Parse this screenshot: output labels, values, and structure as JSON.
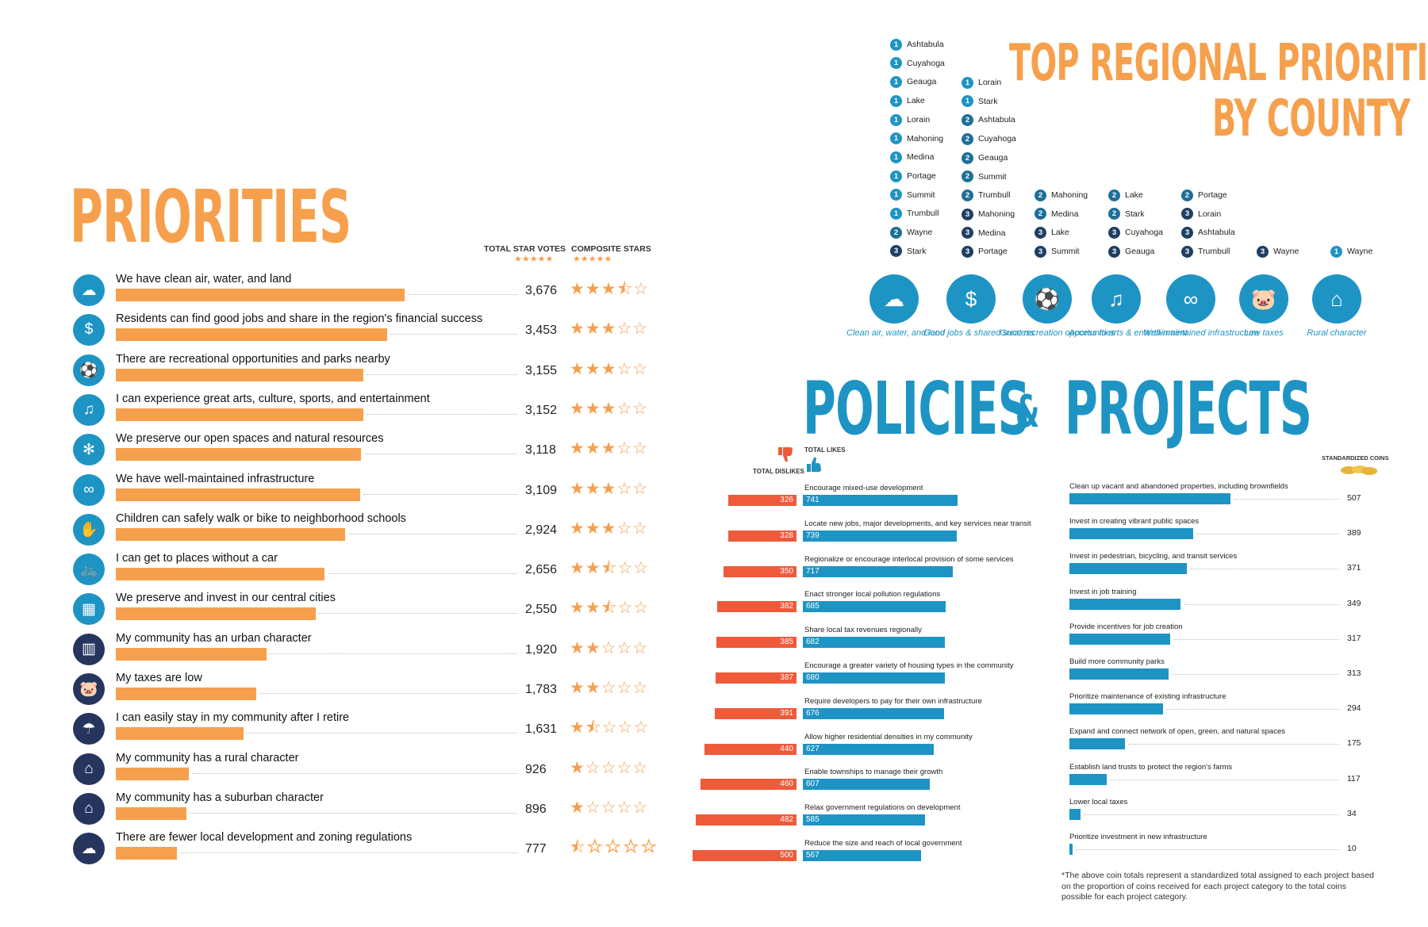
{
  "priorities": {
    "title": "PRIORITIES",
    "col_votes": "TOTAL STAR VOTES",
    "col_stars": "COMPOSITE STARS",
    "header_stars": "★★★★★"
  },
  "county": {
    "title_line1": "TOP REGIONAL PRIORITIES",
    "title_line2": "BY COUNTY",
    "columns": [
      [
        {
          "rank": "1",
          "name": "Ashtabula"
        },
        {
          "rank": "1",
          "name": "Cuyahoga"
        },
        {
          "rank": "1",
          "name": "Geauga"
        },
        {
          "rank": "1",
          "name": "Lake"
        },
        {
          "rank": "1",
          "name": "Lorain"
        },
        {
          "rank": "1",
          "name": "Mahoning"
        },
        {
          "rank": "1",
          "name": "Medina"
        },
        {
          "rank": "1",
          "name": "Portage"
        },
        {
          "rank": "1",
          "name": "Summit"
        },
        {
          "rank": "1",
          "name": "Trumbull"
        },
        {
          "rank": "2",
          "name": "Wayne"
        },
        {
          "rank": "3",
          "name": "Stark"
        }
      ],
      [
        {
          "rank": "1",
          "name": "Lorain"
        },
        {
          "rank": "1",
          "name": "Stark"
        },
        {
          "rank": "2",
          "name": "Ashtabula"
        },
        {
          "rank": "2",
          "name": "Cuyahoga"
        },
        {
          "rank": "2",
          "name": "Geauga"
        },
        {
          "rank": "2",
          "name": "Summit"
        },
        {
          "rank": "2",
          "name": "Trumbull"
        },
        {
          "rank": "3",
          "name": "Mahoning"
        },
        {
          "rank": "3",
          "name": "Medina"
        },
        {
          "rank": "3",
          "name": "Portage"
        }
      ],
      [
        {
          "rank": "2",
          "name": "Mahoning"
        },
        {
          "rank": "2",
          "name": "Medina"
        },
        {
          "rank": "3",
          "name": "Lake"
        },
        {
          "rank": "3",
          "name": "Summit"
        }
      ],
      [
        {
          "rank": "2",
          "name": "Lake"
        },
        {
          "rank": "2",
          "name": "Stark"
        },
        {
          "rank": "3",
          "name": "Cuyahoga"
        },
        {
          "rank": "3",
          "name": "Geauga"
        }
      ],
      [
        {
          "rank": "2",
          "name": "Portage"
        },
        {
          "rank": "3",
          "name": "Lorain"
        },
        {
          "rank": "3",
          "name": "Ashtabula"
        },
        {
          "rank": "3",
          "name": "Trumbull"
        }
      ],
      [
        {
          "rank": "3",
          "name": "Wayne"
        }
      ],
      [
        {
          "rank": "1",
          "name": "Wayne"
        }
      ]
    ],
    "badges": [
      {
        "label": "Clean air, water, and land",
        "icon": "☁"
      },
      {
        "label": "Good jobs & shared success",
        "icon": "$"
      },
      {
        "label": "Great recreation opportunities",
        "icon": "⚽"
      },
      {
        "label": "Access to arts & entertainment",
        "icon": "♫"
      },
      {
        "label": "Well-maintained infrastructure",
        "icon": "∞"
      },
      {
        "label": "Low taxes",
        "icon": "🐷"
      },
      {
        "label": "Rural character",
        "icon": "⌂"
      }
    ]
  },
  "policies": {
    "title_left": "POLICIES",
    "amp": "&",
    "title_right": "PROJECTS",
    "dislikes_label": "TOTAL DISLIKES",
    "likes_label": "TOTAL LIKES",
    "coins_label": "STANDARDIZED COINS",
    "footnote": "*The above coin totals represent a standardized total assigned to each project based on the proportion of coins received for each project category to the total coins possible for each project category."
  },
  "chart_data": [
    {
      "type": "bar",
      "title": "PRIORITIES",
      "series": [
        {
          "name": "TOTAL STAR VOTES",
          "values": [
            3676,
            3453,
            3155,
            3152,
            3118,
            3109,
            2924,
            2656,
            2550,
            1920,
            1783,
            1631,
            926,
            896,
            777
          ]
        },
        {
          "name": "COMPOSITE STARS",
          "values": [
            3.5,
            3,
            3,
            3,
            3,
            3,
            3,
            2.5,
            2.5,
            2,
            2,
            1.5,
            1,
            1,
            0.5
          ]
        }
      ],
      "categories": [
        "We have clean air, water, and land",
        "Residents can find good jobs and share in the region's financial success",
        "There are recreational opportunities and parks nearby",
        "I can experience great arts, culture, sports, and entertainment",
        "We preserve our open spaces and natural resources",
        "We have well-maintained infrastructure",
        "Children can safely walk or bike to neighborhood schools",
        "I can get to places without a car",
        "We preserve and invest in our central cities",
        "My community has an urban character",
        "My taxes are low",
        "I can easily stay in my community after I retire",
        "My community has a rural character",
        "My community has a suburban character",
        "There are fewer local development and zoning regulations"
      ],
      "display_values": [
        "3,676",
        "3,453",
        "3,155",
        "3,152",
        "3,118",
        "3,109",
        "2,924",
        "2,656",
        "2,550",
        "1,920",
        "1,783",
        "1,631",
        "926",
        "896",
        "777"
      ],
      "icons": [
        "☁",
        "$",
        "⚽",
        "♫",
        "✻",
        "∞",
        "✋",
        "🚲",
        "▦",
        "▥",
        "🐷",
        "☂",
        "⌂",
        "⌂",
        "☁"
      ],
      "dark_icons": [
        9,
        10,
        11,
        12,
        13,
        14
      ],
      "xlim": [
        0,
        4000
      ]
    },
    {
      "type": "bar",
      "title": "POLICIES",
      "categories": [
        "Encourage mixed-use development",
        "Locate new jobs, major developments, and key services near transit",
        "Regionalize or encourage interlocal provision of some services",
        "Enact stronger local pollution regulations",
        "Share local tax revenues regionally",
        "Encourage a greater variety of housing types in the community",
        "Require developers to pay for their own infrastructure",
        "Allow higher residential densities in my community",
        "Enable townships to manage their growth",
        "Relax government regulations on development",
        "Reduce the size and reach of local government"
      ],
      "series": [
        {
          "name": "TOTAL DISLIKES",
          "values": [
            326,
            328,
            350,
            382,
            385,
            387,
            391,
            440,
            460,
            482,
            500
          ]
        },
        {
          "name": "TOTAL LIKES",
          "values": [
            741,
            739,
            717,
            685,
            682,
            680,
            676,
            627,
            607,
            585,
            567
          ]
        }
      ]
    },
    {
      "type": "bar",
      "title": "PROJECTS",
      "categories": [
        "Clean up vacant and abandoned properties, including brownfields",
        "Invest in creating vibrant public spaces",
        "Invest in pedestrian, bicycling, and transit services",
        "Invest in job training",
        "Provide incentives for job creation",
        "Build more community parks",
        "Prioritize maintenance of existing infrastructure",
        "Expand and connect network of open, green, and natural spaces",
        "Establish land trusts to protect the region's farms",
        "Lower local taxes",
        "Prioritize investment in new infrastructure"
      ],
      "series": [
        {
          "name": "STANDARDIZED COINS",
          "values": [
            507,
            389,
            371,
            349,
            317,
            313,
            294,
            175,
            117,
            34,
            10
          ]
        }
      ]
    }
  ]
}
